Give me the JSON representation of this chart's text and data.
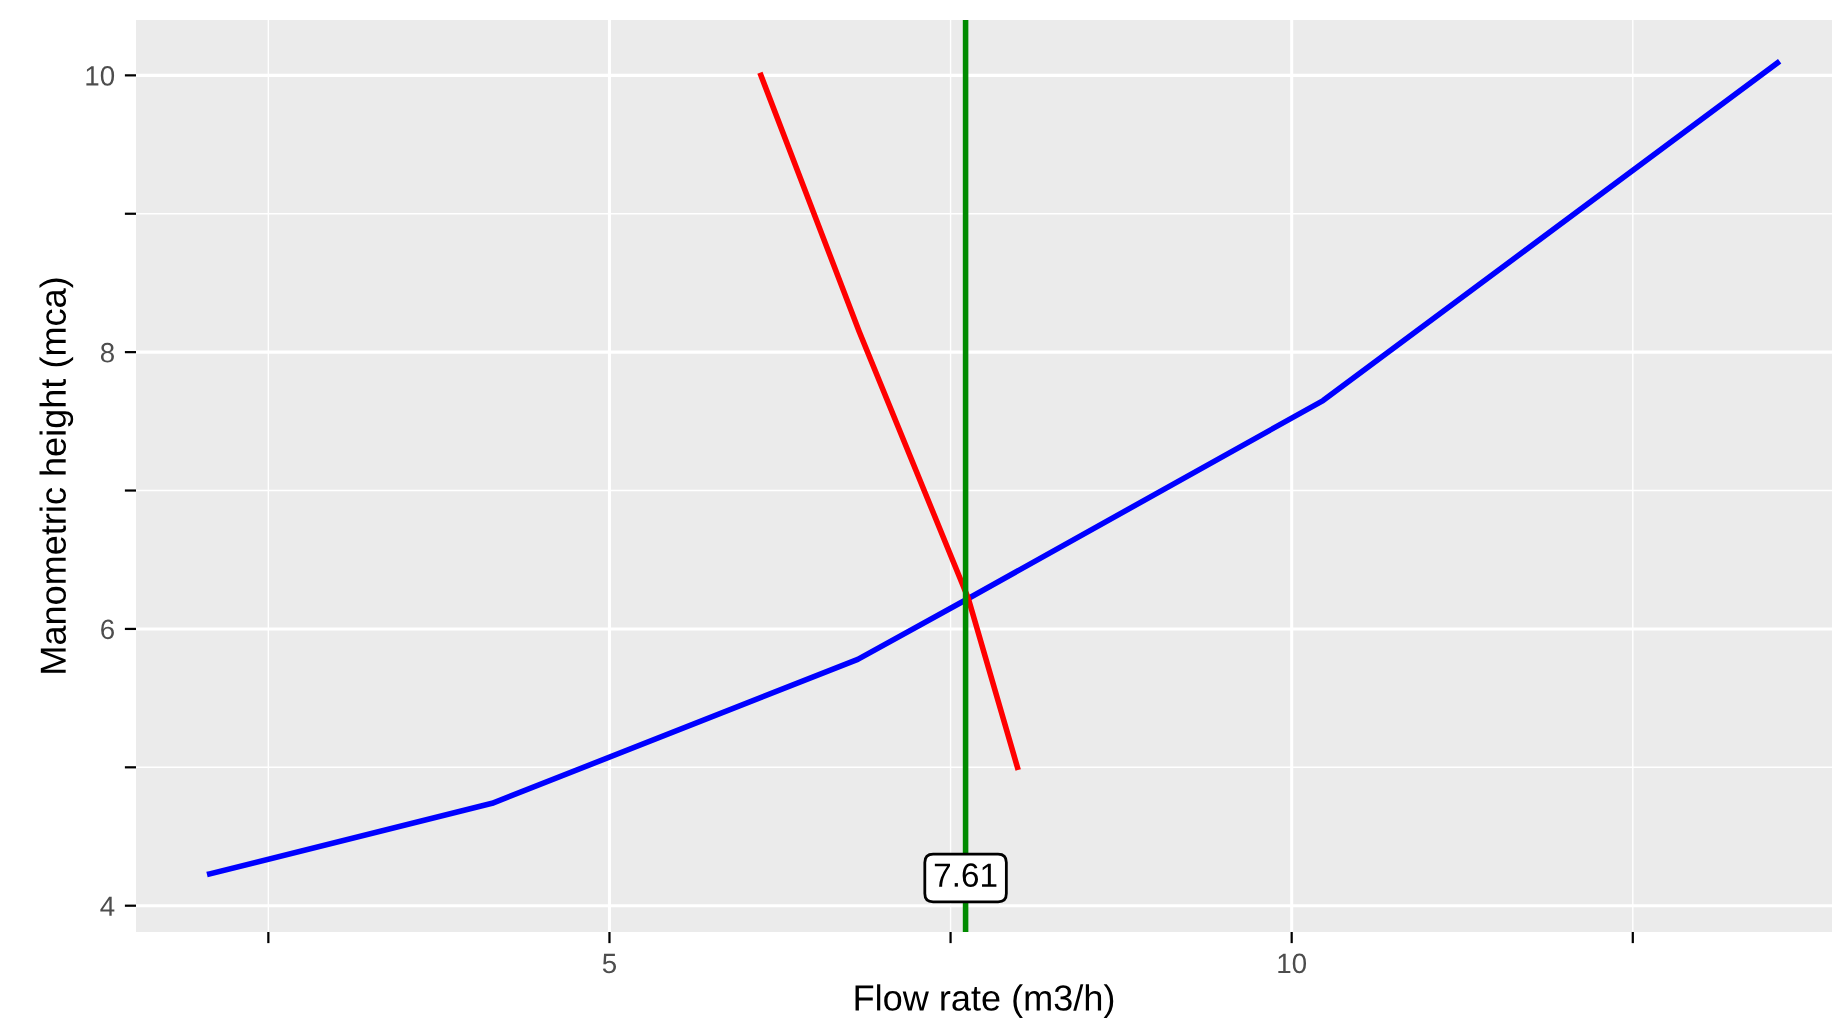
{
  "chart_data": {
    "type": "line",
    "xlabel": "Flow rate (m3/h)",
    "ylabel": "Manometric height (mca)",
    "series": [
      {
        "x": [
          2.07,
          4.14,
          6.82,
          7.63,
          10.23,
          13.56
        ],
        "values": [
          4.23,
          4.74,
          5.78,
          6.22,
          7.65,
          10.09
        ],
        "color": "#0000ff"
      },
      {
        "x": [
          6.11,
          6.83,
          7.63,
          7.99
        ],
        "values": [
          10.0,
          8.15,
          6.22,
          5.0
        ],
        "color": "#ff0000"
      }
    ],
    "ref_lines": [
      {
        "axis": "x",
        "value": 7.61,
        "color": "#008b00"
      }
    ],
    "annotations": [
      {
        "text": "7.61",
        "x": 7.61,
        "y": 4.2
      }
    ],
    "xlim": [
      1.53,
      13.96
    ],
    "ylim": [
      3.81,
      10.4
    ],
    "xticks": [
      {
        "value": 2.5,
        "label": null
      },
      5,
      {
        "value": 7.5,
        "label": null
      },
      10,
      {
        "value": 12.5,
        "label": null
      }
    ],
    "yticks": [
      4,
      {
        "value": 5,
        "label": null
      },
      6,
      {
        "value": 7,
        "label": null
      },
      8,
      {
        "value": 9,
        "label": null
      },
      10
    ],
    "grid": true,
    "legend": false,
    "line_style": "solid",
    "marker": "none"
  }
}
